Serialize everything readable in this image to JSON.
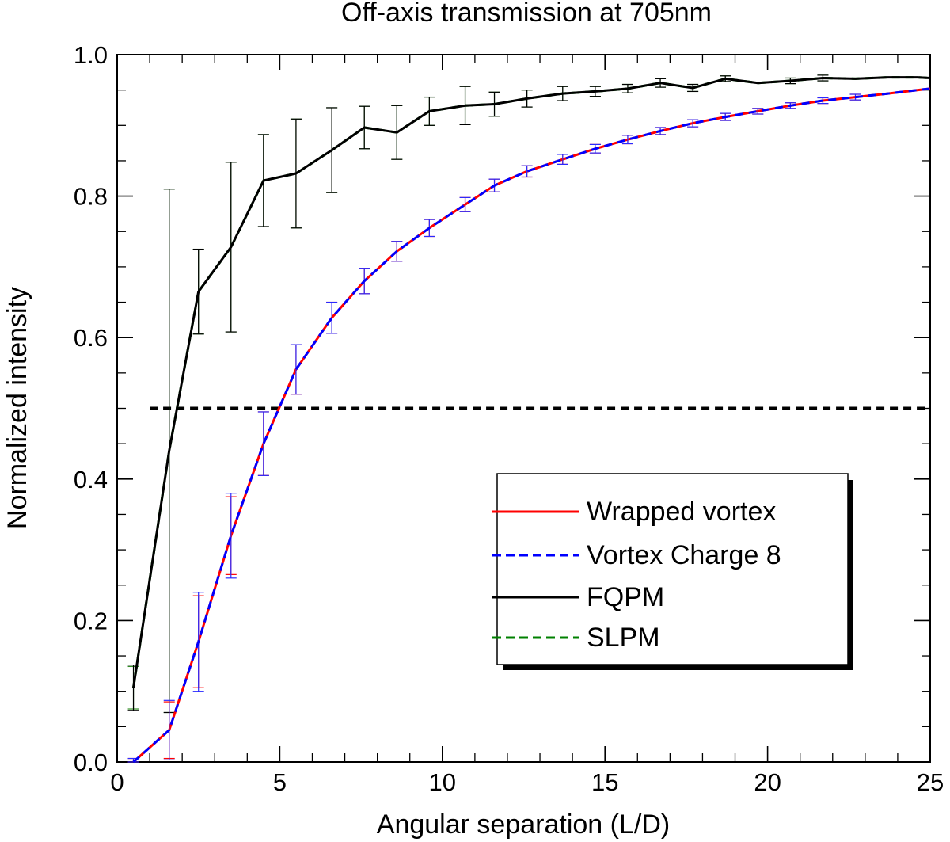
{
  "chart_data": {
    "type": "line",
    "title": "Off-axis transmission at 705nm",
    "xlabel": "Angular separation (L/D)",
    "ylabel": "Normalized intensity",
    "xlim": [
      0,
      25
    ],
    "ylim": [
      0,
      1
    ],
    "xticks": [
      0,
      5,
      10,
      15,
      20,
      25
    ],
    "yticks": [
      0.0,
      0.2,
      0.4,
      0.6,
      0.8,
      1.0
    ],
    "xtick_labels": [
      "0",
      "5",
      "10",
      "15",
      "20",
      "25"
    ],
    "ytick_labels": [
      "0.0",
      "0.2",
      "0.4",
      "0.6",
      "0.8",
      "1.0"
    ],
    "x_minor_step": 1,
    "y_minor_step": 0.05,
    "threshold": 0.5,
    "x": [
      0.5,
      1.6,
      2.5,
      3.5,
      4.5,
      5.5,
      6.6,
      7.6,
      8.6,
      9.6,
      10.7,
      11.6,
      12.6,
      13.7,
      14.7,
      15.7,
      16.7,
      17.7,
      18.7,
      19.7,
      20.7,
      21.7,
      22.7,
      23.7,
      24.6,
      25.0
    ],
    "series": [
      {
        "name": "Wrapped vortex",
        "color": "#ff0000",
        "dash": "solid",
        "err_color": "#ff0000",
        "values": [
          0.0,
          0.045,
          0.17,
          0.32,
          0.45,
          0.555,
          0.628,
          0.68,
          0.722,
          0.755,
          0.788,
          0.815,
          0.835,
          0.852,
          0.867,
          0.88,
          0.892,
          0.903,
          0.912,
          0.92,
          0.928,
          0.935,
          0.94,
          0.945,
          0.95,
          0.952
        ],
        "errors": [
          0.005,
          0.04,
          0.065,
          0.055,
          0.045,
          0.035,
          0.022,
          0.018,
          0.014,
          0.012,
          0.01,
          0.009,
          0.008,
          0.007,
          0.006,
          0.006,
          0.005,
          0.005,
          0.005,
          0.004,
          0.004,
          0.004,
          0.004,
          0.003,
          0.003,
          0.003
        ]
      },
      {
        "name": "Vortex Charge 8",
        "color": "#0000ff",
        "dash": "dashed",
        "err_color": "#2a2aff",
        "values": [
          0.0,
          0.045,
          0.17,
          0.32,
          0.45,
          0.555,
          0.628,
          0.68,
          0.722,
          0.755,
          0.788,
          0.815,
          0.835,
          0.852,
          0.867,
          0.88,
          0.892,
          0.903,
          0.912,
          0.92,
          0.928,
          0.935,
          0.94,
          0.945,
          0.95,
          0.952
        ],
        "errors": [
          0.005,
          0.042,
          0.07,
          0.06,
          0.045,
          0.035,
          0.022,
          0.018,
          0.014,
          0.012,
          0.01,
          0.009,
          0.008,
          0.007,
          0.006,
          0.006,
          0.005,
          0.005,
          0.005,
          0.004,
          0.004,
          0.004,
          0.004,
          0.003,
          0.003,
          0.003
        ]
      },
      {
        "name": "FQPM",
        "color": "#000000",
        "dash": "solid",
        "err_color": "#000000",
        "values": [
          0.105,
          0.44,
          0.665,
          0.728,
          0.822,
          0.832,
          0.865,
          0.897,
          0.89,
          0.92,
          0.928,
          0.93,
          0.938,
          0.945,
          0.948,
          0.952,
          0.96,
          0.953,
          0.966,
          0.96,
          0.963,
          0.967,
          0.966,
          0.968,
          0.968,
          0.967
        ],
        "errors": [
          0.032,
          0.37,
          0.06,
          0.12,
          0.065,
          0.077,
          0.06,
          0.03,
          0.038,
          0.02,
          0.027,
          0.017,
          0.012,
          0.01,
          0.007,
          0.006,
          0.006,
          0.005,
          0.004,
          0.003,
          0.004,
          0.004,
          0.003,
          0.003,
          0.003,
          0.003
        ]
      },
      {
        "name": "SLPM",
        "color": "#008000",
        "dash": "dashed",
        "err_color": "#2e8b22",
        "values": [
          0.105,
          0.44,
          0.665,
          0.728,
          0.822,
          0.832,
          0.865,
          0.897,
          0.89,
          0.92,
          0.928,
          0.93,
          0.938,
          0.945,
          0.948,
          0.952,
          0.96,
          0.953,
          0.966,
          0.96,
          0.963,
          0.967,
          0.966,
          0.968,
          0.968,
          0.967
        ],
        "errors": [
          0.03,
          0.37,
          0.06,
          0.12,
          0.065,
          0.077,
          0.06,
          0.03,
          0.038,
          0.02,
          0.027,
          0.017,
          0.012,
          0.01,
          0.007,
          0.006,
          0.006,
          0.005,
          0.004,
          0.003,
          0.004,
          0.004,
          0.003,
          0.003,
          0.003,
          0.003
        ]
      }
    ],
    "legend": {
      "position": "lower-right",
      "entries": [
        "Wrapped vortex",
        "Vortex Charge 8",
        "FQPM",
        "SLPM"
      ]
    }
  }
}
